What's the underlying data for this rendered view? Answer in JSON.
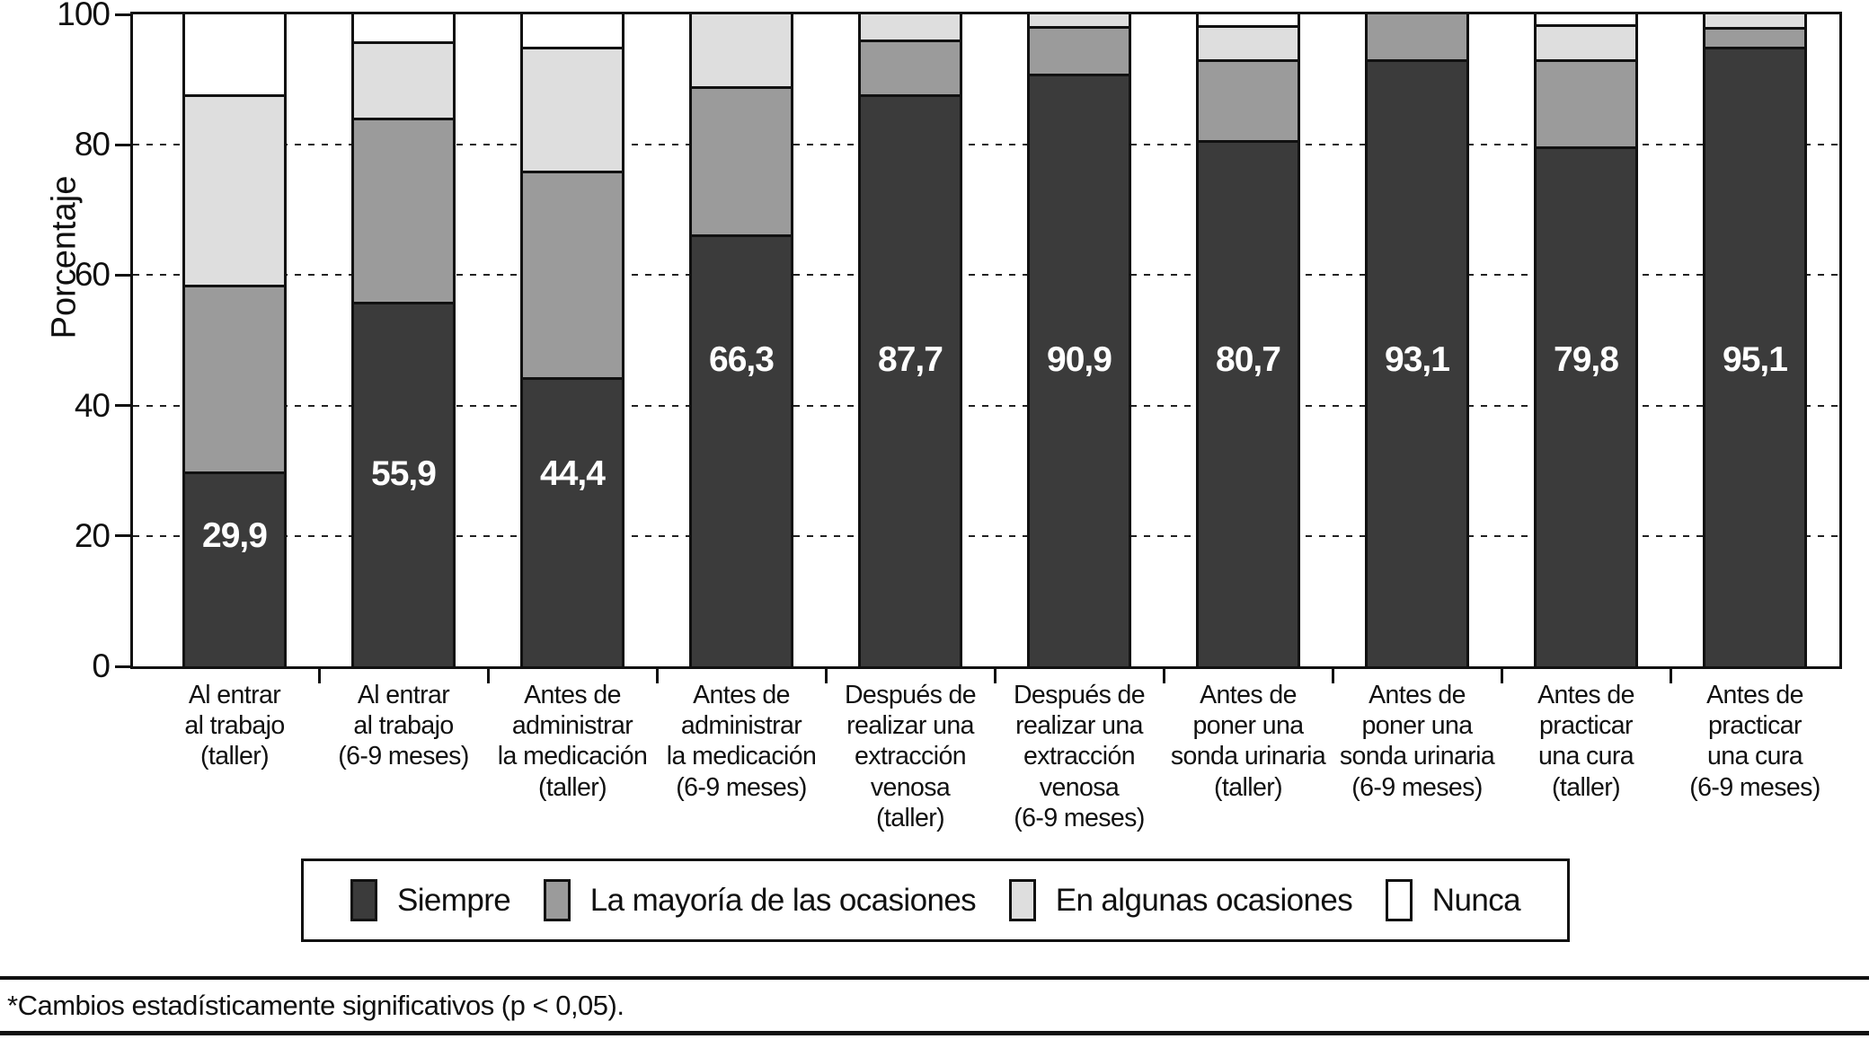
{
  "figure": {
    "y_axis_title": "Porcentaje",
    "footnote": "*Cambios estadísticamente significativos (p < 0,05)."
  },
  "colors": {
    "siempre": "#3b3b3b",
    "mayoria": "#9b9b9b",
    "algunas": "#dedede",
    "nunca": "#ffffff",
    "outline": "#111111",
    "bar_value_text": "#ffffff"
  },
  "chart_data": {
    "type": "bar",
    "stacked": true,
    "title": "",
    "xlabel": "",
    "ylabel": "Porcentaje",
    "ylim": [
      0,
      100
    ],
    "ytick_labels": [
      "0",
      "20",
      "40",
      "60",
      "80",
      "100"
    ],
    "yticks": [
      0,
      20,
      40,
      60,
      80,
      100
    ],
    "grid": "horizontal dashed at 20, 40, 60, 80",
    "legend_position": "bottom boxed",
    "categories": [
      [
        "Al entrar",
        "al trabajo",
        "(taller)"
      ],
      [
        "Al entrar",
        "al trabajo",
        "(6-9 meses)"
      ],
      [
        "Antes de",
        "administrar",
        "la medicación",
        "(taller)"
      ],
      [
        "Antes de",
        "administrar",
        "la medicación",
        "(6-9 meses)"
      ],
      [
        "Después de",
        "realizar una",
        "extracción",
        "venosa",
        "(taller)"
      ],
      [
        "Después de",
        "realizar una",
        "extracción",
        "venosa",
        "(6-9 meses)"
      ],
      [
        "Antes de",
        "poner una",
        "sonda urinaria",
        "(taller)"
      ],
      [
        "Antes de",
        "poner una",
        "sonda urinaria",
        "(6-9 meses)"
      ],
      [
        "Antes de",
        "practicar",
        "una cura",
        "(taller)"
      ],
      [
        "Antes de",
        "practicar",
        "una cura",
        "(6-9 meses)"
      ]
    ],
    "series": [
      {
        "name": "Siempre",
        "color": "#3b3b3b",
        "values": [
          29.9,
          55.9,
          44.4,
          66.3,
          87.7,
          90.9,
          80.7,
          93.1,
          79.8,
          95.1
        ]
      },
      {
        "name": "La mayoría de las ocasiones",
        "color": "#9b9b9b",
        "values": [
          28.6,
          28.2,
          31.7,
          22.7,
          8.4,
          7.3,
          12.4,
          6.9,
          13.3,
          3.0
        ]
      },
      {
        "name": "En algunas ocasiones",
        "color": "#dedede",
        "values": [
          29.2,
          11.8,
          18.9,
          11.0,
          3.9,
          1.8,
          5.2,
          0.0,
          5.4,
          1.9
        ]
      },
      {
        "name": "Nunca",
        "color": "#ffffff",
        "values": [
          12.3,
          4.1,
          5.0,
          0.0,
          0.0,
          0.0,
          1.7,
          0.0,
          1.5,
          0.0
        ]
      }
    ],
    "bar_value_labels": {
      "series": "Siempre",
      "labels": [
        "29,9",
        "55,9",
        "44,4",
        "66,3",
        "87,7",
        "90,9",
        "80,7",
        "93,1",
        "79,8",
        "95,1"
      ],
      "label_y_pct": [
        20,
        29.5,
        29.5,
        47,
        47,
        47,
        47,
        47,
        47,
        47
      ]
    }
  }
}
